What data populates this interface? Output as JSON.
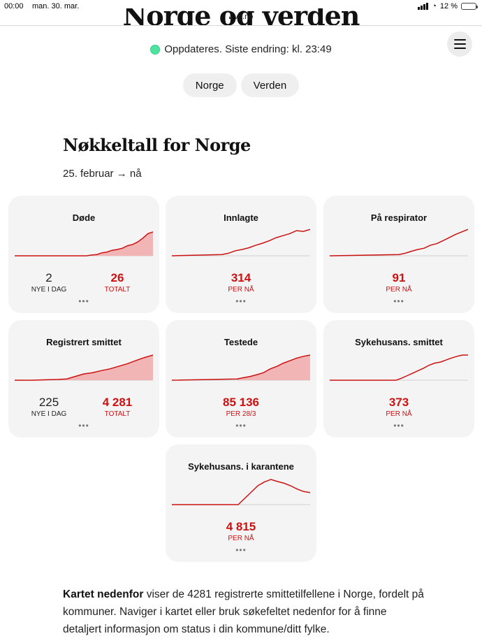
{
  "status_bar": {
    "time": "00:00",
    "date": "man. 30. mar.",
    "battery": "12 %"
  },
  "url": "vg.no",
  "hero_title": "Norge og verden",
  "update": {
    "text": "Oppdateres. Siste endring: kl. 23:49",
    "dot_color": "#4fe3a0"
  },
  "tabs": [
    "Norge",
    "Verden"
  ],
  "section_title": "Nøkkeltall for Norge",
  "date_range": "25. februar → nå",
  "accent_color": "#cc1111",
  "cards": [
    {
      "title": "Døde",
      "left": {
        "value": "2",
        "label": "NYE I DAG"
      },
      "right": {
        "value": "26",
        "label": "TOTALT"
      },
      "chart": {
        "type": "area",
        "start": 0.52,
        "y": [
          0.0,
          0.03,
          0.05,
          0.12,
          0.15,
          0.22,
          0.25,
          0.3,
          0.4,
          0.45,
          0.55,
          0.7,
          0.88,
          0.95
        ]
      }
    },
    {
      "title": "Innlagte",
      "center": {
        "value": "314",
        "label": "PER NÅ"
      },
      "chart": {
        "type": "line",
        "start": 0.36,
        "y": [
          0.05,
          0.1,
          0.2,
          0.25,
          0.32,
          0.42,
          0.5,
          0.6,
          0.72,
          0.8,
          0.88,
          1.0,
          0.97,
          1.05
        ]
      }
    },
    {
      "title": "På respirator",
      "center": {
        "value": "91",
        "label": "PER NÅ"
      },
      "chart": {
        "type": "line",
        "start": 0.5,
        "y": [
          0.05,
          0.1,
          0.18,
          0.25,
          0.3,
          0.42,
          0.48,
          0.6,
          0.72,
          0.85,
          0.95,
          1.05
        ]
      }
    },
    {
      "title": "Registrert smittet",
      "left": {
        "value": "225",
        "label": "NYE I DAG"
      },
      "right": {
        "value": "4 281",
        "label": "TOTALT"
      },
      "chart": {
        "type": "area",
        "start": 0.0,
        "y": [
          0.0,
          0.0,
          0.0,
          0.01,
          0.02,
          0.03,
          0.05,
          0.15,
          0.25,
          0.3,
          0.38,
          0.45,
          0.55,
          0.65,
          0.78,
          0.9,
          1.0
        ]
      }
    },
    {
      "title": "Testede",
      "center": {
        "value": "85 136",
        "label": "PER 28/3"
      },
      "chart": {
        "type": "area",
        "start": 0.47,
        "y": [
          0.05,
          0.1,
          0.15,
          0.22,
          0.3,
          0.45,
          0.55,
          0.68,
          0.78,
          0.88,
          0.95,
          1.0
        ]
      }
    },
    {
      "title": "Sykehusans. smittet",
      "center": {
        "value": "373",
        "label": "PER NÅ"
      },
      "chart": {
        "type": "line",
        "start": 0.48,
        "y": [
          0.0,
          0.08,
          0.18,
          0.28,
          0.38,
          0.48,
          0.6,
          0.68,
          0.72,
          0.8,
          0.88,
          0.95,
          1.0,
          1.0
        ]
      }
    },
    {
      "title": "Sykehusans. i karantene",
      "center": {
        "value": "4 815",
        "label": "PER NÅ"
      },
      "chart": {
        "type": "line",
        "start": 0.48,
        "y": [
          0.0,
          0.25,
          0.5,
          0.75,
          0.9,
          1.0,
          0.92,
          0.85,
          0.75,
          0.62,
          0.52,
          0.48
        ]
      }
    }
  ],
  "paragraph": {
    "bold": "Kartet nedenfor",
    "rest": " viser de 4281 registrerte smittetilfellene i Norge, fordelt på kommuner. Naviger i kartet eller bruk søkefeltet nedenfor for å finne detaljert informasjon om status i din kommune/ditt fylke."
  }
}
